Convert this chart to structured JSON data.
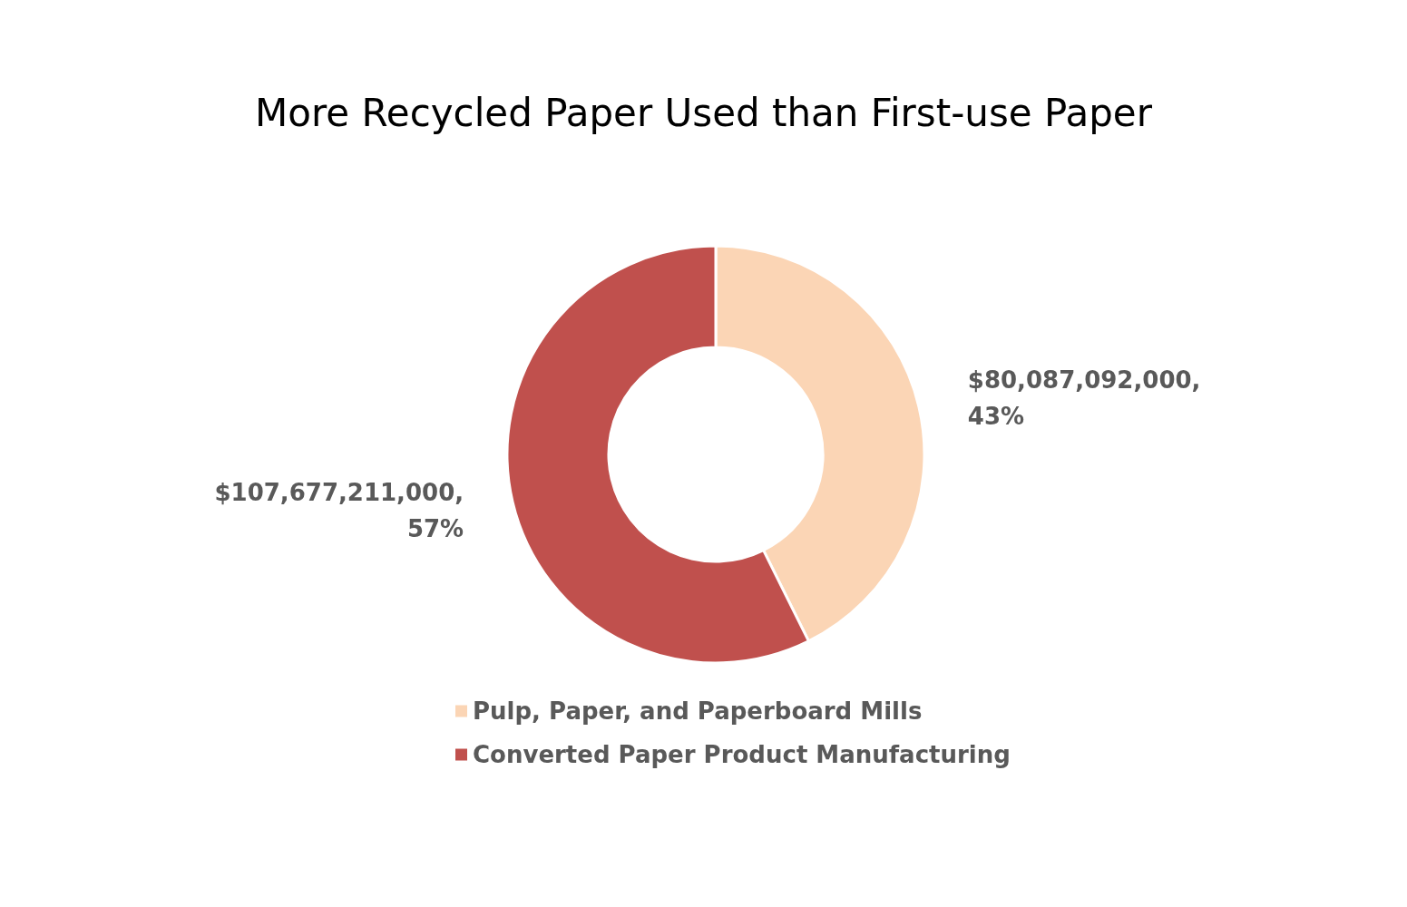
{
  "chart_data": {
    "type": "donut",
    "title": "More Recycled Paper Used than First-use Paper",
    "categories": [
      "Pulp, Paper, and Paperboard Mills",
      "Converted Paper Product Manufacturing"
    ],
    "values": [
      80087092000,
      107677211000
    ],
    "colors": [
      "#fbd5b5",
      "#c0504d"
    ],
    "value_labels": [
      "$80,087,092,000,\n43%",
      "$107,677,211,000,\n57%"
    ],
    "legend": "bottom"
  }
}
